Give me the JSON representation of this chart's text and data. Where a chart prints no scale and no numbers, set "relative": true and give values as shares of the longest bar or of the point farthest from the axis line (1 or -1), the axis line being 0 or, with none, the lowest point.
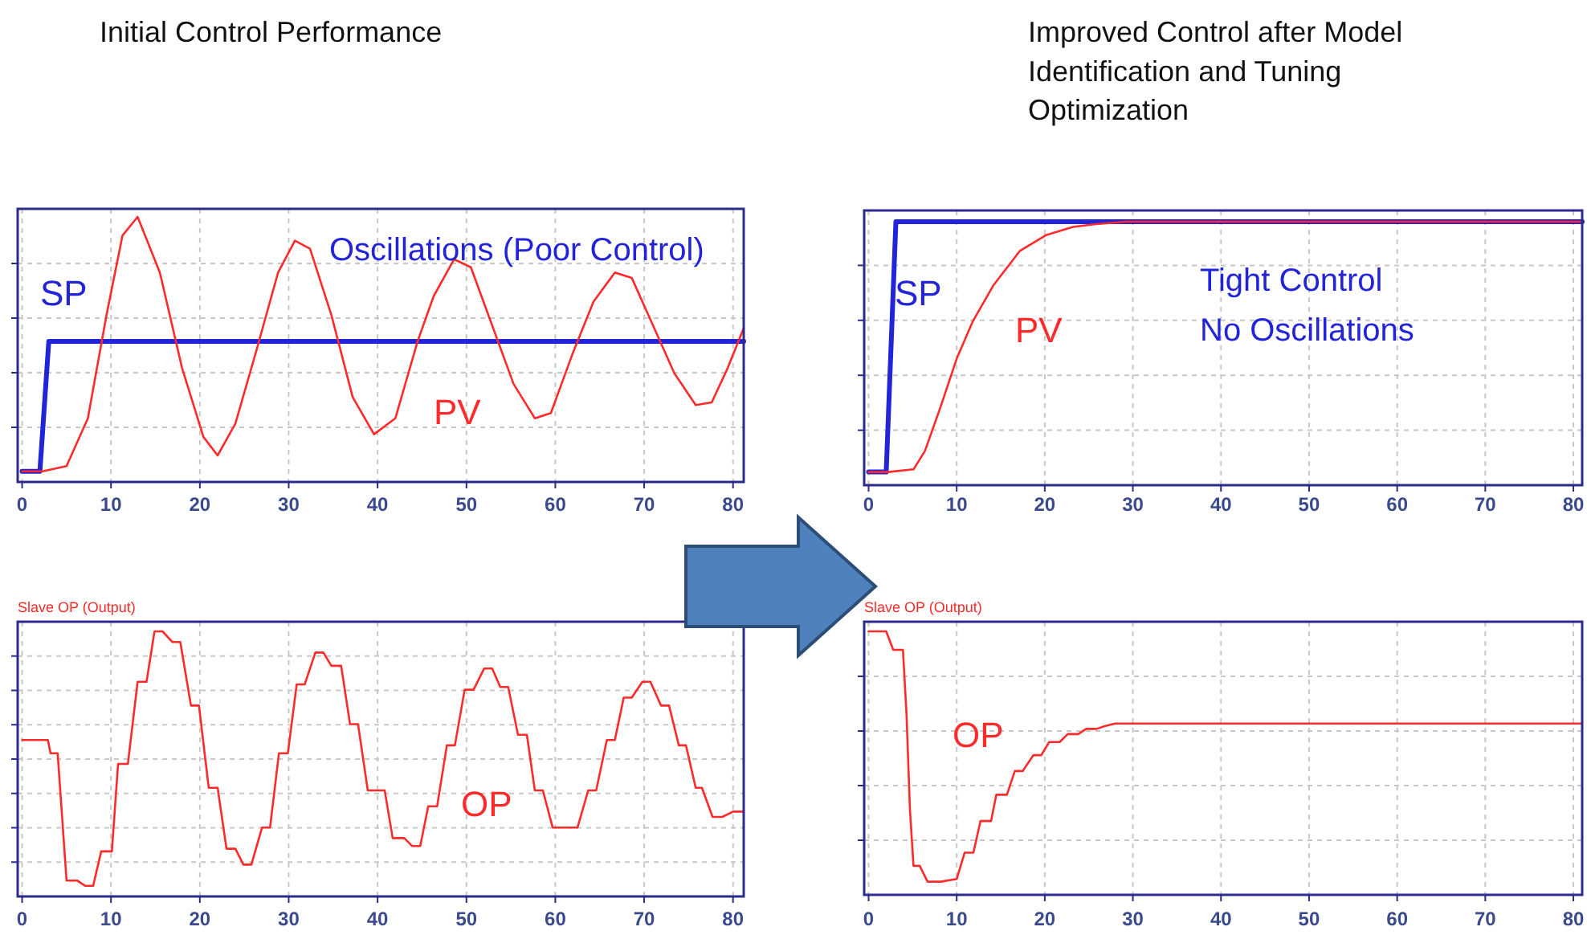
{
  "chart_data": [
    {
      "type": "line",
      "title": "Initial Control Performance",
      "relative": true,
      "xlim": [
        -0.5,
        81.2
      ],
      "xticks": [
        0,
        10,
        20,
        30,
        40,
        50,
        60,
        70,
        80
      ],
      "grid": true,
      "tick_labels": "x",
      "annotations": [
        "Oscillations (Poor Control)"
      ],
      "series": [
        {
          "name": "SP",
          "color": "#2323d8",
          "x": [
            0,
            2,
            3,
            81.2
          ],
          "values": [
            0.04,
            0.04,
            0.53,
            0.53
          ]
        },
        {
          "name": "PV",
          "color": "#ff2a2a",
          "x": [
            0,
            2.3,
            5,
            7.4,
            9.5,
            11.3,
            13,
            15.5,
            18,
            20.4,
            22,
            24,
            26.4,
            28.8,
            30.7,
            32.4,
            34.8,
            37.2,
            39.6,
            42,
            44.5,
            46.3,
            48.6,
            50.5,
            52.9,
            55.3,
            57.7,
            59.5,
            61.9,
            64.3,
            66.7,
            68.6,
            71,
            73.4,
            75.8,
            77.6,
            79.4,
            81.2
          ],
          "values": [
            0.04,
            0.04,
            0.06,
            0.24,
            0.63,
            0.93,
            1,
            0.79,
            0.43,
            0.17,
            0.1,
            0.22,
            0.5,
            0.79,
            0.91,
            0.88,
            0.63,
            0.32,
            0.18,
            0.24,
            0.53,
            0.7,
            0.84,
            0.81,
            0.59,
            0.37,
            0.24,
            0.26,
            0.48,
            0.68,
            0.79,
            0.77,
            0.59,
            0.41,
            0.29,
            0.3,
            0.43,
            0.58
          ]
        }
      ]
    },
    {
      "type": "line",
      "title": "Improved Control after Model Identification and Tuning Optimization",
      "relative": true,
      "xlim": [
        -0.5,
        81
      ],
      "xticks": [
        0,
        10,
        20,
        30,
        40,
        50,
        60,
        70,
        80
      ],
      "grid": true,
      "tick_labels": "x",
      "annotations": [
        "Tight Control",
        "No Oscillations"
      ],
      "series": [
        {
          "name": "SP",
          "color": "#2323d8",
          "x": [
            0,
            2,
            3.1,
            81
          ],
          "values": [
            0.05,
            0.05,
            1,
            1
          ]
        },
        {
          "name": "PV",
          "color": "#ff2a2a",
          "x": [
            0,
            2.2,
            5.1,
            6.4,
            8.2,
            10,
            11.8,
            14.2,
            17.2,
            20.2,
            23.2,
            25.6,
            29.2,
            81
          ],
          "values": [
            0.05,
            0.05,
            0.06,
            0.13,
            0.3,
            0.48,
            0.62,
            0.76,
            0.89,
            0.95,
            0.98,
            0.99,
            1,
            1
          ]
        }
      ]
    },
    {
      "type": "line",
      "title": "Slave OP (Output)",
      "relative": true,
      "xlim": [
        -0.5,
        81.2
      ],
      "xticks": [
        0,
        10,
        20,
        30,
        40,
        50,
        60,
        70,
        80
      ],
      "grid": true,
      "tick_labels": "x",
      "series": [
        {
          "name": "OP",
          "color": "#ff2a2a",
          "x": [
            0,
            2.9,
            3.2,
            4,
            5,
            6.2,
            7.1,
            8,
            8.9,
            10.1,
            10.8,
            11.9,
            13,
            14,
            14.9,
            15.8,
            16.9,
            17.8,
            19,
            19.9,
            21,
            22,
            23,
            24,
            24.9,
            25.8,
            27,
            27.9,
            28.9,
            29.9,
            30.9,
            31.8,
            33,
            33.9,
            34.8,
            35.9,
            36.9,
            37.8,
            38.9,
            40.8,
            41.7,
            43,
            43.9,
            44.8,
            45.7,
            46.7,
            47.8,
            48.7,
            49.8,
            50.8,
            52,
            52.9,
            53.8,
            54.7,
            55.8,
            56.8,
            57.7,
            58.6,
            59.7,
            62.5,
            63.7,
            64.6,
            65.8,
            66.7,
            67.7,
            68.6,
            69.8,
            70.7,
            71.9,
            72.8,
            73.9,
            74.7,
            75.8,
            76.5,
            77.7,
            78.8,
            80,
            81.2
          ],
          "values": [
            0.59,
            0.59,
            0.54,
            0.54,
            0.06,
            0.06,
            0.04,
            0.04,
            0.17,
            0.17,
            0.5,
            0.5,
            0.81,
            0.81,
            1,
            1,
            0.96,
            0.96,
            0.72,
            0.72,
            0.41,
            0.41,
            0.18,
            0.18,
            0.12,
            0.12,
            0.26,
            0.26,
            0.54,
            0.54,
            0.8,
            0.8,
            0.92,
            0.92,
            0.87,
            0.87,
            0.65,
            0.65,
            0.4,
            0.4,
            0.22,
            0.22,
            0.19,
            0.19,
            0.34,
            0.34,
            0.57,
            0.57,
            0.78,
            0.78,
            0.86,
            0.86,
            0.79,
            0.79,
            0.61,
            0.61,
            0.4,
            0.4,
            0.26,
            0.26,
            0.4,
            0.4,
            0.59,
            0.59,
            0.75,
            0.75,
            0.81,
            0.81,
            0.72,
            0.72,
            0.57,
            0.57,
            0.41,
            0.41,
            0.3,
            0.3,
            0.32,
            0.32
          ]
        }
      ]
    },
    {
      "type": "line",
      "title": "Slave OP (Output)",
      "relative": true,
      "xlim": [
        -0.5,
        81
      ],
      "xticks": [
        0,
        10,
        20,
        30,
        40,
        50,
        60,
        70,
        80
      ],
      "grid": true,
      "tick_labels": "x",
      "series": [
        {
          "name": "OP",
          "color": "#ff2a2a",
          "x": [
            0,
            2,
            2.8,
            3.9,
            4.3,
            4.7,
            5.1,
            5.8,
            6.7,
            8.2,
            10,
            10.9,
            11.9,
            12.7,
            13.9,
            14.5,
            15.7,
            16.6,
            17.5,
            18.7,
            19.6,
            20.5,
            21.7,
            22.6,
            23.8,
            24.7,
            25.9,
            26.8,
            28,
            81
          ],
          "values": [
            1,
            1,
            0.93,
            0.93,
            0.69,
            0.32,
            0.11,
            0.11,
            0.05,
            0.05,
            0.06,
            0.16,
            0.16,
            0.28,
            0.28,
            0.38,
            0.38,
            0.47,
            0.47,
            0.53,
            0.53,
            0.58,
            0.58,
            0.61,
            0.61,
            0.63,
            0.63,
            0.64,
            0.65,
            0.65
          ]
        }
      ]
    }
  ]
}
